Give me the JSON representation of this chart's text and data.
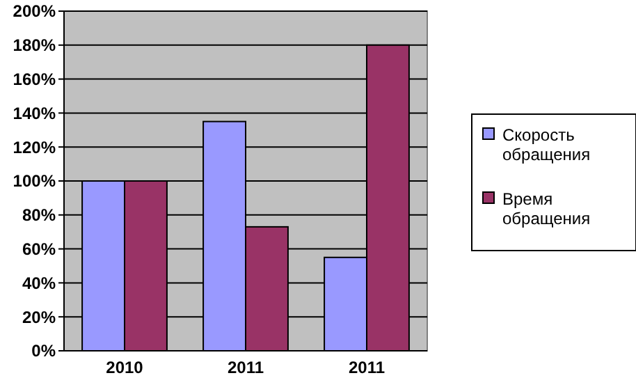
{
  "chart_data": {
    "type": "bar",
    "categories": [
      "2010",
      "2011",
      "2011"
    ],
    "series": [
      {
        "name": "Скорость обращения",
        "color": "#9999ff",
        "values": [
          100,
          135,
          55
        ]
      },
      {
        "name": "Время обращения",
        "color": "#993366",
        "values": [
          100,
          73,
          180
        ]
      }
    ],
    "ylim": [
      0,
      200
    ],
    "yticks": [
      {
        "value": 0,
        "label": "0%"
      },
      {
        "value": 20,
        "label": "20%"
      },
      {
        "value": 40,
        "label": "40%"
      },
      {
        "value": 60,
        "label": "60%"
      },
      {
        "value": 80,
        "label": "80%"
      },
      {
        "value": 100,
        "label": "100%"
      },
      {
        "value": 120,
        "label": "120%"
      },
      {
        "value": 140,
        "label": "140%"
      },
      {
        "value": 160,
        "label": "160%"
      },
      {
        "value": 180,
        "label": "180%"
      },
      {
        "value": 200,
        "label": "200%"
      }
    ],
    "grid": "y",
    "legend": "right"
  }
}
